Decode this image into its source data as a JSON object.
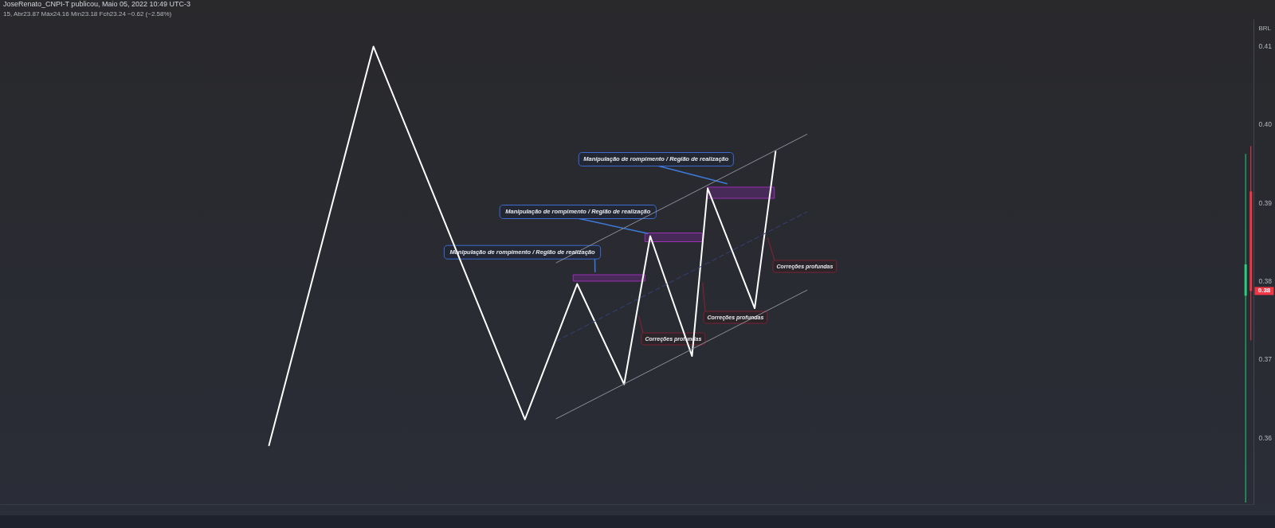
{
  "chart_data": {
    "type": "line",
    "title": "JoseRenato_CNPI-T publicou, Maio 05, 2022 10:49 UTC-3",
    "subtitle": "15, Abr23.87 Máx24.16 Mín23.18 Fch23.24 −0.62 (−2.58%)",
    "ylabel": "BRL",
    "tick_labels": "y",
    "categories": [
      null,
      null,
      null,
      null,
      null,
      null,
      null,
      null,
      null,
      null,
      null,
      null,
      null,
      null,
      null,
      null,
      null,
      null,
      null,
      null,
      null,
      null,
      null,
      null,
      null,
      null,
      null,
      null,
      null,
      null,
      null,
      null,
      null,
      null,
      null,
      null,
      null,
      null,
      null,
      null,
      null,
      null,
      null,
      null,
      null,
      null,
      null,
      null,
      null,
      null,
      null,
      null,
      null,
      null,
      null,
      null,
      null,
      null,
      null,
      null,
      null,
      null,
      null,
      null,
      null,
      null,
      null,
      null,
      null,
      null,
      null,
      null,
      null,
      null,
      null,
      null,
      null,
      null,
      null,
      null,
      null,
      null,
      null,
      null,
      null,
      null,
      null,
      null,
      null,
      null,
      null,
      null,
      null,
      null,
      null,
      null,
      null,
      null,
      null,
      null,
      null,
      null,
      null,
      null,
      null,
      null,
      null,
      null,
      null,
      null,
      null,
      null,
      null,
      null,
      null,
      null,
      null,
      null,
      null,
      null,
      null,
      null,
      null,
      null,
      null,
      null,
      null,
      null,
      null,
      null,
      null,
      null,
      null,
      null,
      null,
      null,
      null,
      null,
      null,
      null,
      null,
      null,
      null,
      null,
      null,
      null,
      null,
      null,
      null,
      null,
      null,
      null,
      null,
      null,
      null,
      null,
      null,
      null,
      null,
      null,
      null,
      null,
      null,
      null,
      null,
      null,
      null,
      null,
      null,
      null,
      null,
      null,
      null,
      null,
      null,
      null,
      null,
      null,
      null,
      null,
      null,
      null,
      null,
      null,
      null,
      null,
      null,
      null,
      null,
      null,
      null,
      null,
      null,
      null,
      null,
      null,
      null,
      null,
      null,
      null,
      null,
      null,
      null,
      null,
      null,
      null,
      null,
      null,
      null,
      null,
      null,
      null,
      null,
      null,
      null,
      null,
      null,
      null,
      null,
      null,
      null,
      null,
      null,
      null,
      null,
      null,
      null,
      null,
      null,
      null,
      null,
      null,
      null,
      null,
      null,
      null,
      null,
      null,
      null,
      null
    ],
    "ylim": [
      0.3515,
      0.4134
    ],
    "yticks": [
      0.36,
      0.37,
      0.38,
      0.39,
      {
        "value": 0.4,
        "label": "0.40"
      },
      0.41
    ],
    "series": [
      {
        "color": "#ffffff",
        "values": [
          null,
          null,
          null,
          null,
          null,
          null,
          null,
          null,
          null,
          null,
          null,
          null,
          null,
          null,
          null,
          null,
          null,
          null,
          null,
          null,
          null,
          null,
          null,
          null,
          null,
          null,
          null,
          null,
          null,
          null,
          null,
          null,
          null,
          null,
          null,
          null,
          null,
          null,
          null,
          null,
          null,
          null,
          null,
          null,
          null,
          null,
          null,
          null,
          null,
          null,
          null,
          0.359,
          null,
          null,
          null,
          null,
          null,
          null,
          null,
          null,
          null,
          null,
          null,
          null,
          null,
          null,
          null,
          null,
          null,
          null,
          null,
          0.4099,
          null,
          null,
          null,
          null,
          null,
          null,
          null,
          null,
          null,
          null,
          null,
          null,
          null,
          null,
          null,
          null,
          null,
          null,
          null,
          null,
          null,
          null,
          null,
          null,
          null,
          null,
          null,
          null,
          0.3623,
          null,
          null,
          null,
          null,
          null,
          null,
          null,
          null,
          null,
          0.3796,
          null,
          null,
          null,
          null,
          null,
          null,
          null,
          null,
          0.3668,
          null,
          null,
          null,
          null,
          0.3857,
          null,
          null,
          null,
          null,
          null,
          null,
          null,
          0.3704,
          null,
          null,
          0.3918,
          null,
          null,
          null,
          null,
          null,
          null,
          null,
          null,
          0.3765,
          null,
          null,
          null,
          0.3965,
          null,
          null,
          null,
          null,
          null,
          null,
          null,
          null,
          null,
          null,
          null,
          null,
          null,
          null,
          null,
          null,
          null,
          null,
          null,
          null,
          null,
          null,
          null,
          null,
          null,
          null,
          null,
          null,
          null,
          null,
          null,
          null,
          null,
          null,
          null,
          null,
          null,
          null,
          null,
          null,
          null,
          null,
          null,
          null,
          null,
          null,
          null,
          null,
          null,
          null,
          null,
          null,
          null,
          null,
          null,
          null,
          null,
          null,
          null,
          null,
          null,
          null,
          null,
          null,
          null,
          null,
          null,
          null,
          null,
          null,
          null,
          null,
          null,
          null,
          null,
          null,
          null,
          null,
          null,
          null,
          null,
          null,
          null,
          null,
          null,
          null,
          null,
          null,
          null,
          null,
          null
        ]
      },
      {
        "color": "#8c8f99",
        "values": [
          null,
          null,
          null,
          null,
          null,
          null,
          null,
          null,
          null,
          null,
          null,
          null,
          null,
          null,
          null,
          null,
          null,
          null,
          null,
          null,
          null,
          null,
          null,
          null,
          null,
          null,
          null,
          null,
          null,
          null,
          null,
          null,
          null,
          null,
          null,
          null,
          null,
          null,
          null,
          null,
          null,
          null,
          null,
          null,
          null,
          null,
          null,
          null,
          null,
          null,
          null,
          null,
          null,
          null,
          null,
          null,
          null,
          null,
          null,
          null,
          null,
          null,
          null,
          null,
          null,
          null,
          null,
          null,
          null,
          null,
          null,
          null,
          null,
          null,
          null,
          null,
          null,
          null,
          null,
          null,
          null,
          null,
          null,
          null,
          null,
          null,
          null,
          null,
          null,
          null,
          null,
          null,
          null,
          null,
          null,
          null,
          null,
          null,
          null,
          null,
          null,
          null,
          null,
          null,
          null,
          null,
          0.3823,
          null,
          null,
          null,
          null,
          null,
          null,
          null,
          null,
          null,
          null,
          null,
          null,
          null,
          null,
          null,
          null,
          null,
          null,
          null,
          null,
          null,
          null,
          null,
          null,
          null,
          null,
          null,
          null,
          null,
          null,
          null,
          null,
          null,
          null,
          null,
          null,
          null,
          null,
          null,
          null,
          null,
          null,
          null,
          null,
          null,
          null,
          null,
          0.3987,
          null,
          null,
          null,
          null,
          null,
          null,
          null,
          null,
          null,
          null,
          null,
          null,
          null,
          null,
          null,
          null,
          null,
          null,
          null,
          null,
          null,
          null,
          null,
          null,
          null,
          null,
          null,
          null,
          null,
          null,
          null,
          null,
          null,
          null,
          null,
          null,
          null,
          null,
          null,
          null,
          null,
          null,
          null,
          null,
          null,
          null,
          null,
          null,
          null,
          null,
          null,
          null,
          null,
          null,
          null,
          null,
          null,
          null,
          null,
          null,
          null,
          null,
          null,
          null,
          null,
          null,
          null,
          null,
          null,
          null,
          null,
          null,
          null,
          null,
          null,
          null,
          null,
          null,
          null,
          null,
          null,
          null,
          null,
          null,
          null
        ]
      },
      {
        "color": "#34427a",
        "line_style": "dashed",
        "values": [
          null,
          null,
          null,
          null,
          null,
          null,
          null,
          null,
          null,
          null,
          null,
          null,
          null,
          null,
          null,
          null,
          null,
          null,
          null,
          null,
          null,
          null,
          null,
          null,
          null,
          null,
          null,
          null,
          null,
          null,
          null,
          null,
          null,
          null,
          null,
          null,
          null,
          null,
          null,
          null,
          null,
          null,
          null,
          null,
          null,
          null,
          null,
          null,
          null,
          null,
          null,
          null,
          null,
          null,
          null,
          null,
          null,
          null,
          null,
          null,
          null,
          null,
          null,
          null,
          null,
          null,
          null,
          null,
          null,
          null,
          null,
          null,
          null,
          null,
          null,
          null,
          null,
          null,
          null,
          null,
          null,
          null,
          null,
          null,
          null,
          null,
          null,
          null,
          null,
          null,
          null,
          null,
          null,
          null,
          null,
          null,
          null,
          null,
          null,
          null,
          null,
          null,
          null,
          null,
          null,
          null,
          0.3723,
          null,
          null,
          null,
          null,
          null,
          null,
          null,
          null,
          null,
          null,
          null,
          null,
          null,
          null,
          null,
          null,
          null,
          null,
          null,
          null,
          null,
          null,
          null,
          null,
          null,
          null,
          null,
          null,
          null,
          null,
          null,
          null,
          null,
          null,
          null,
          null,
          null,
          null,
          null,
          null,
          null,
          null,
          null,
          null,
          null,
          null,
          null,
          0.3888,
          null,
          null,
          null,
          null,
          null,
          null,
          null,
          null,
          null,
          null,
          null,
          null,
          null,
          null,
          null,
          null,
          null,
          null,
          null,
          null,
          null,
          null,
          null,
          null,
          null,
          null,
          null,
          null,
          null,
          null,
          null,
          null,
          null,
          null,
          null,
          null,
          null,
          null,
          null,
          null,
          null,
          null,
          null,
          null,
          null,
          null,
          null,
          null,
          null,
          null,
          null,
          null,
          null,
          null,
          null,
          null,
          null,
          null,
          null,
          null,
          null,
          null,
          null,
          null,
          null,
          null,
          null,
          null,
          null,
          null,
          null,
          null,
          null,
          null,
          null,
          null,
          null,
          null,
          null,
          null,
          null,
          null,
          null,
          null,
          null
        ]
      },
      {
        "color": "#8c8f99",
        "values": [
          null,
          null,
          null,
          null,
          null,
          null,
          null,
          null,
          null,
          null,
          null,
          null,
          null,
          null,
          null,
          null,
          null,
          null,
          null,
          null,
          null,
          null,
          null,
          null,
          null,
          null,
          null,
          null,
          null,
          null,
          null,
          null,
          null,
          null,
          null,
          null,
          null,
          null,
          null,
          null,
          null,
          null,
          null,
          null,
          null,
          null,
          null,
          null,
          null,
          null,
          null,
          null,
          null,
          null,
          null,
          null,
          null,
          null,
          null,
          null,
          null,
          null,
          null,
          null,
          null,
          null,
          null,
          null,
          null,
          null,
          null,
          null,
          null,
          null,
          null,
          null,
          null,
          null,
          null,
          null,
          null,
          null,
          null,
          null,
          null,
          null,
          null,
          null,
          null,
          null,
          null,
          null,
          null,
          null,
          null,
          null,
          null,
          null,
          null,
          null,
          null,
          null,
          null,
          null,
          null,
          null,
          0.3624,
          null,
          null,
          null,
          null,
          null,
          null,
          null,
          null,
          null,
          null,
          null,
          null,
          null,
          null,
          null,
          null,
          null,
          null,
          null,
          null,
          null,
          null,
          null,
          null,
          null,
          null,
          null,
          null,
          null,
          null,
          null,
          null,
          null,
          null,
          null,
          null,
          null,
          null,
          null,
          null,
          null,
          null,
          null,
          null,
          null,
          null,
          null,
          0.3788,
          null,
          null,
          null,
          null,
          null,
          null,
          null,
          null,
          null,
          null,
          null,
          null,
          null,
          null,
          null,
          null,
          null,
          null,
          null,
          null,
          null,
          null,
          null,
          null,
          null,
          null,
          null,
          null,
          null,
          null,
          null,
          null,
          null,
          null,
          null,
          null,
          null,
          null,
          null,
          null,
          null,
          null,
          null,
          null,
          null,
          null,
          null,
          null,
          null,
          null,
          null,
          null,
          null,
          null,
          null,
          null,
          null,
          null,
          null,
          null,
          null,
          null,
          null,
          null,
          null,
          null,
          null,
          null,
          null,
          null,
          null,
          null,
          null,
          null,
          null,
          null,
          null,
          null,
          null,
          null,
          null,
          null,
          null,
          null,
          null
        ]
      },
      {
        "type": "candlestick",
        "ohlc": [
          null,
          null,
          null,
          null,
          null,
          null,
          null,
          null,
          null,
          null,
          null,
          null,
          null,
          null,
          null,
          null,
          null,
          null,
          null,
          null,
          null,
          null,
          null,
          null,
          null,
          null,
          null,
          null,
          null,
          null,
          null,
          null,
          null,
          null,
          null,
          null,
          null,
          null,
          null,
          null,
          null,
          null,
          null,
          null,
          null,
          null,
          null,
          null,
          null,
          null,
          null,
          null,
          null,
          null,
          null,
          null,
          null,
          null,
          null,
          null,
          null,
          null,
          null,
          null,
          null,
          null,
          null,
          null,
          null,
          null,
          null,
          null,
          null,
          null,
          null,
          null,
          null,
          null,
          null,
          null,
          null,
          null,
          null,
          null,
          null,
          null,
          null,
          null,
          null,
          null,
          null,
          null,
          null,
          null,
          null,
          null,
          null,
          null,
          null,
          null,
          null,
          null,
          null,
          null,
          null,
          null,
          null,
          null,
          null,
          null,
          null,
          null,
          null,
          null,
          null,
          null,
          null,
          null,
          null,
          null,
          null,
          null,
          null,
          null,
          null,
          null,
          null,
          null,
          null,
          null,
          null,
          null,
          null,
          null,
          null,
          null,
          null,
          null,
          null,
          null,
          null,
          null,
          null,
          null,
          null,
          null,
          null,
          null,
          null,
          null,
          null,
          null,
          null,
          null,
          null,
          null,
          null,
          null,
          null,
          null,
          null,
          null,
          null,
          null,
          null,
          null,
          null,
          null,
          null,
          null,
          null,
          null,
          null,
          null,
          null,
          null,
          null,
          null,
          null,
          null,
          null,
          null,
          null,
          null,
          null,
          null,
          null,
          null,
          null,
          null,
          null,
          null,
          null,
          null,
          null,
          null,
          null,
          null,
          null,
          null,
          null,
          null,
          null,
          null,
          null,
          null,
          null,
          null,
          null,
          null,
          null,
          null,
          null,
          null,
          null,
          null,
          null,
          null,
          null,
          null,
          null,
          null,
          null,
          null,
          null,
          null,
          null,
          null,
          null,
          null,
          null,
          null,
          null,
          null,
          null,
          null,
          null,
          null,
          [
            0.3781,
            0.3962,
            0.3517,
            0.3821
          ],
          [
            0.3914,
            0.3972,
            0.3724,
            0.3787
          ]
        ],
        "colors": [
          null,
          null,
          null,
          null,
          null,
          null,
          null,
          null,
          null,
          null,
          null,
          null,
          null,
          null,
          null,
          null,
          null,
          null,
          null,
          null,
          null,
          null,
          null,
          null,
          null,
          null,
          null,
          null,
          null,
          null,
          null,
          null,
          null,
          null,
          null,
          null,
          null,
          null,
          null,
          null,
          null,
          null,
          null,
          null,
          null,
          null,
          null,
          null,
          null,
          null,
          null,
          null,
          null,
          null,
          null,
          null,
          null,
          null,
          null,
          null,
          null,
          null,
          null,
          null,
          null,
          null,
          null,
          null,
          null,
          null,
          null,
          null,
          null,
          null,
          null,
          null,
          null,
          null,
          null,
          null,
          null,
          null,
          null,
          null,
          null,
          null,
          null,
          null,
          null,
          null,
          null,
          null,
          null,
          null,
          null,
          null,
          null,
          null,
          null,
          null,
          null,
          null,
          null,
          null,
          null,
          null,
          null,
          null,
          null,
          null,
          null,
          null,
          null,
          null,
          null,
          null,
          null,
          null,
          null,
          null,
          null,
          null,
          null,
          null,
          null,
          null,
          null,
          null,
          null,
          null,
          null,
          null,
          null,
          null,
          null,
          null,
          null,
          null,
          null,
          null,
          null,
          null,
          null,
          null,
          null,
          null,
          null,
          null,
          null,
          null,
          null,
          null,
          null,
          null,
          null,
          null,
          null,
          null,
          null,
          null,
          null,
          null,
          null,
          null,
          null,
          null,
          null,
          null,
          null,
          null,
          null,
          null,
          null,
          null,
          null,
          null,
          null,
          null,
          null,
          null,
          null,
          null,
          null,
          null,
          null,
          null,
          null,
          null,
          null,
          null,
          null,
          null,
          null,
          null,
          null,
          null,
          null,
          null,
          null,
          null,
          null,
          null,
          null,
          null,
          null,
          null,
          null,
          null,
          null,
          null,
          null,
          null,
          null,
          null,
          null,
          null,
          null,
          null,
          null,
          null,
          null,
          null,
          null,
          null,
          null,
          null,
          null,
          null,
          null,
          null,
          null,
          null,
          null,
          null,
          null,
          null,
          null,
          null,
          "#26d07c",
          "#f23645"
        ]
      }
    ],
    "annotations": [
      "Manipulação de rompimento /  Região de realização",
      "Manipulação de rompimento /  Região de realização",
      "Manipulação de rompimento / Região de realização",
      "Correções profundas",
      "Correções profundas",
      "Correções profundas",
      {
        "text": "0.38",
        "y": 0.3787
      }
    ]
  }
}
